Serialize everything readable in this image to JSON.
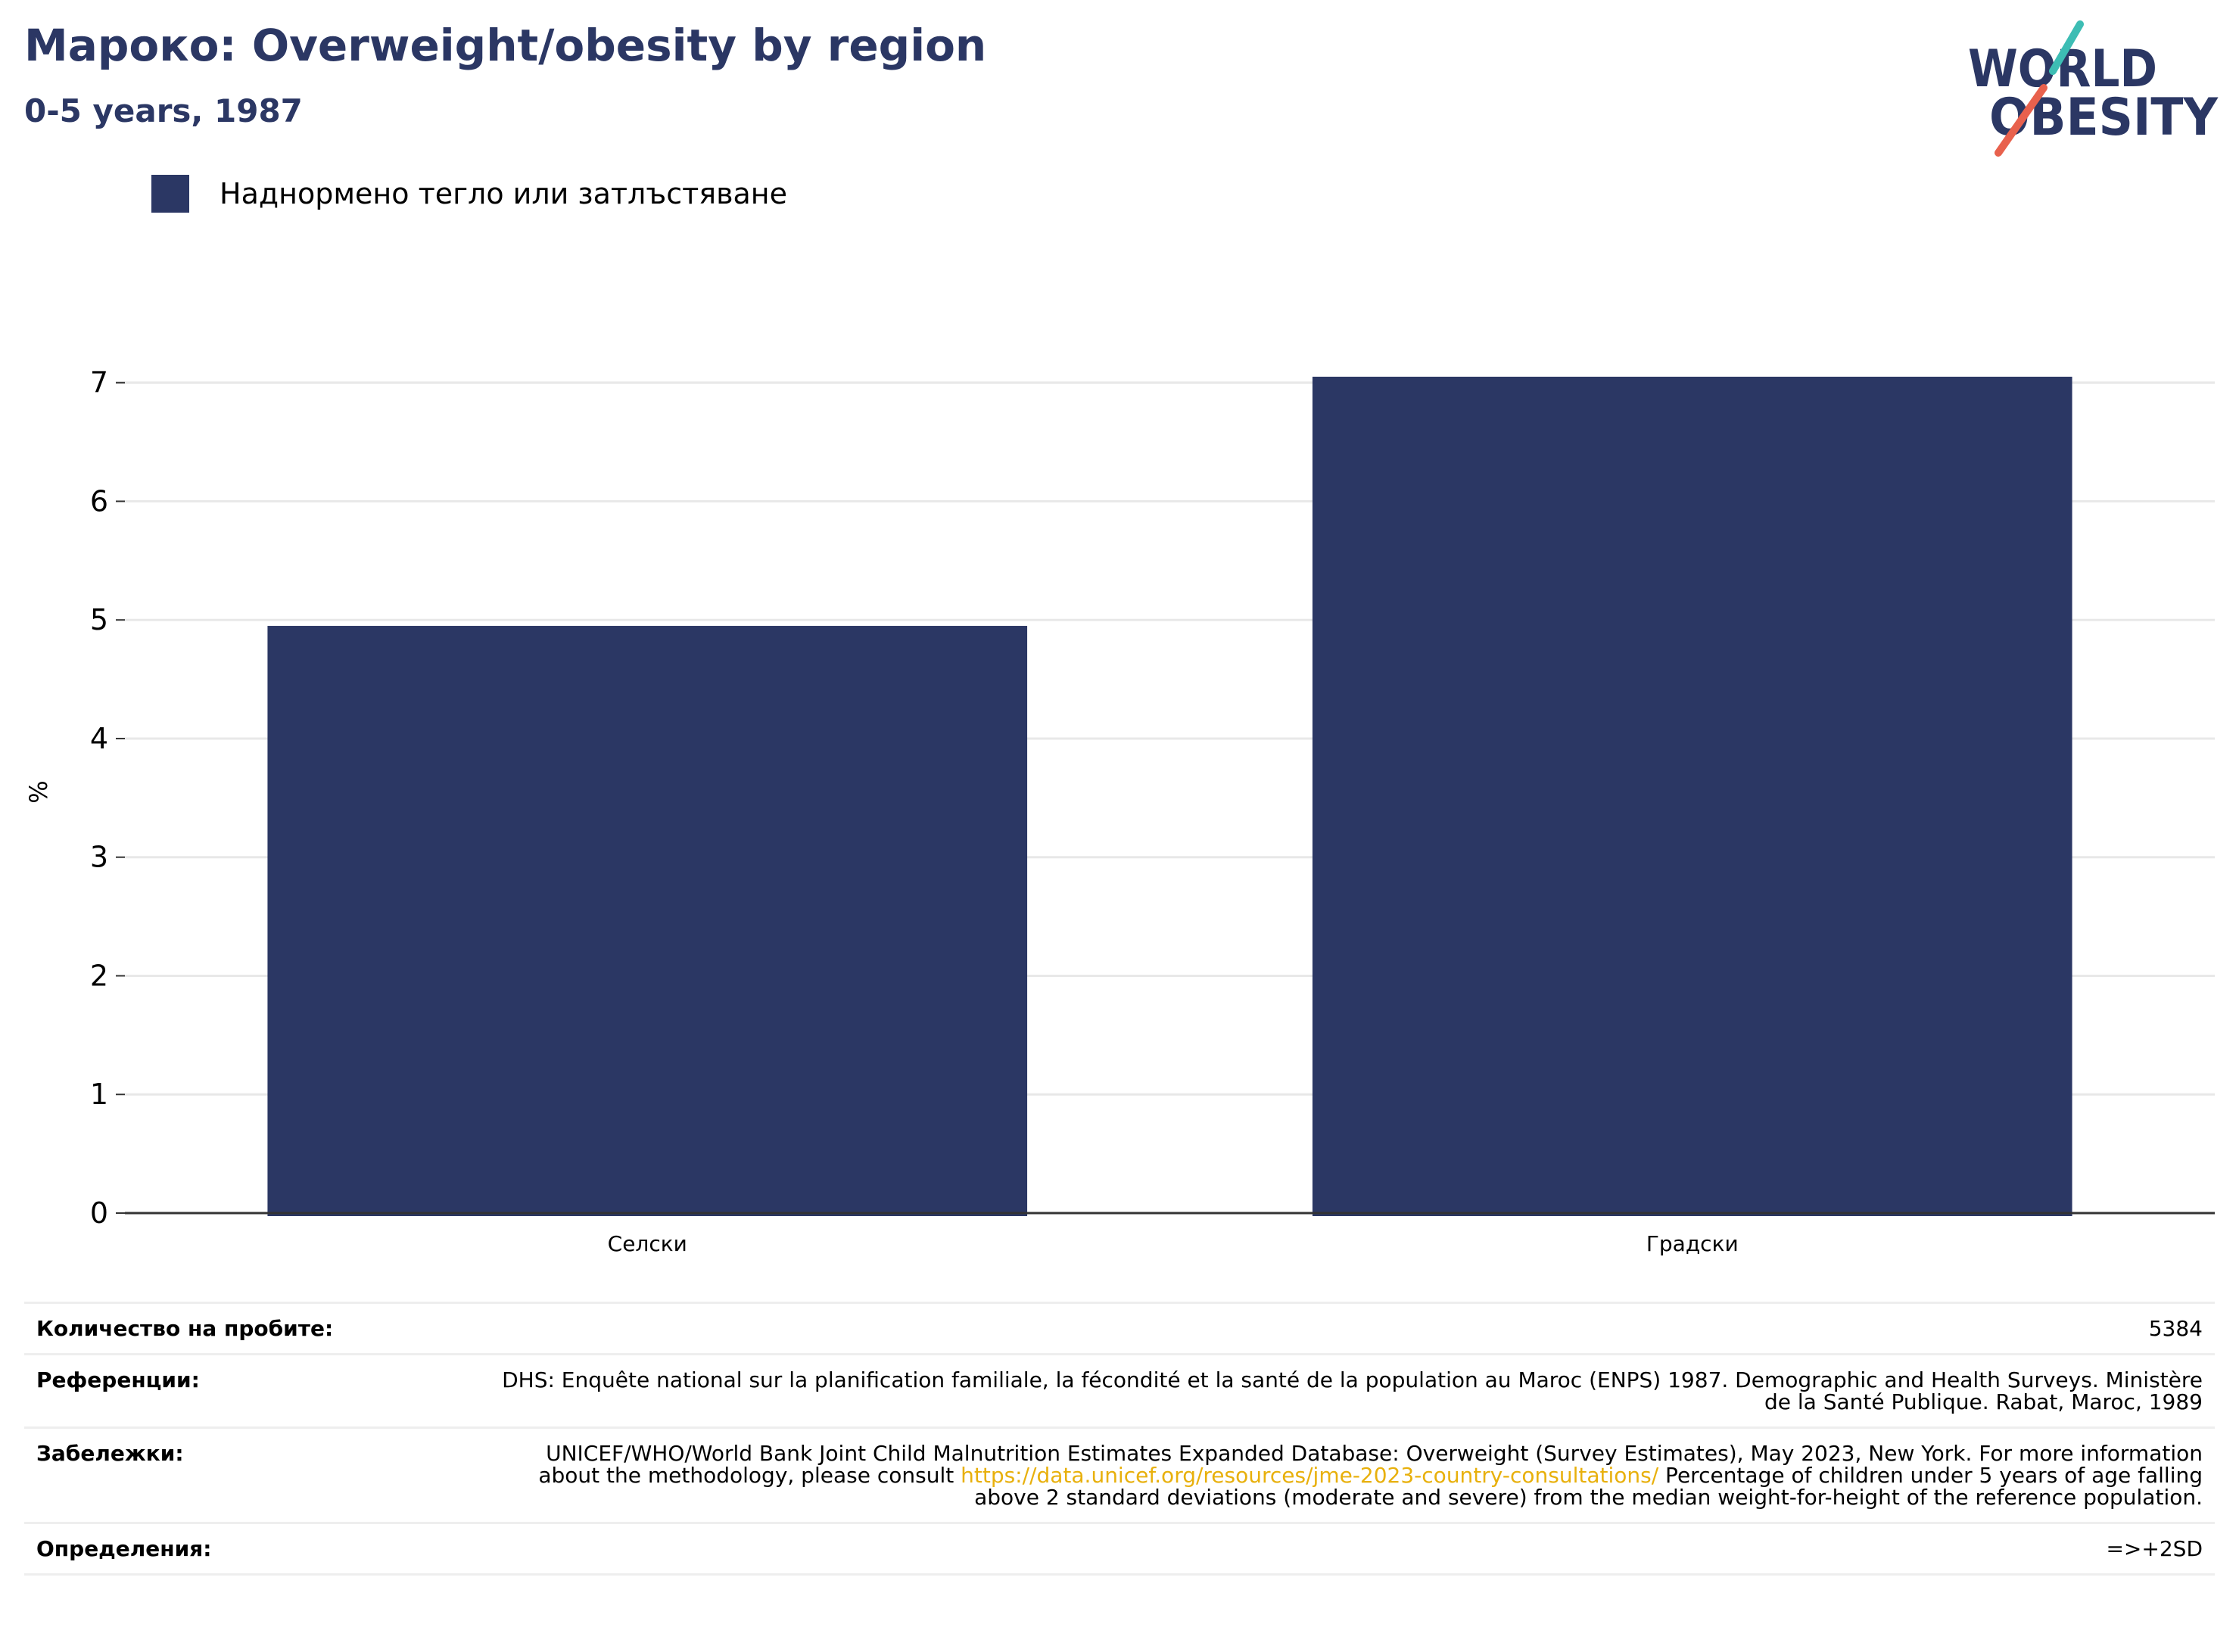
{
  "header": {
    "title": "Мароко: Overweight/obesity by region",
    "subtitle": "0-5 years, 1987"
  },
  "logo": {
    "line1": "WORLD",
    "line2": "OBESITY",
    "colors": {
      "text": "#2b3764",
      "teal": "#3dbdb4",
      "coral": "#e8614d"
    }
  },
  "legend": {
    "label": "Наднормено тегло или затлъстяване",
    "color": "#2b3764"
  },
  "chart_data": {
    "type": "bar",
    "categories": [
      "Селски",
      "Градски"
    ],
    "series": [
      {
        "name": "Наднормено тегло или затлъстяване",
        "values": [
          4.95,
          7.05
        ],
        "color": "#2b3764"
      }
    ],
    "ylabel": "%",
    "ylim": [
      0,
      7.1
    ],
    "yticks": [
      0,
      1,
      2,
      3,
      4,
      5,
      6,
      7
    ],
    "grid": true
  },
  "info": {
    "sample_label": "Количество на пробите:",
    "sample_value": "5384",
    "references_label": "Референции:",
    "references_value": "DHS: Enquête national sur la planification familiale, la fécondité et la santé de la population au Maroc (ENPS) 1987. Demographic and Health Surveys. Ministère de la Santé Publique. Rabat, Maroc, 1989",
    "notes_label": "Забележки:",
    "notes_before": "UNICEF/WHO/World Bank Joint Child Malnutrition Estimates Expanded Database: Overweight (Survey Estimates), May 2023, New York. For more information about the methodology, please consult ",
    "notes_link": "https://data.unicef.org/resources/jme-2023-country-consultations/",
    "notes_after": " Percentage of children under 5 years of age falling above 2 standard deviations (moderate and severe) from the median weight-for-height of the reference population.",
    "definitions_label": "Определения:",
    "definitions_value": "=>+2SD"
  }
}
